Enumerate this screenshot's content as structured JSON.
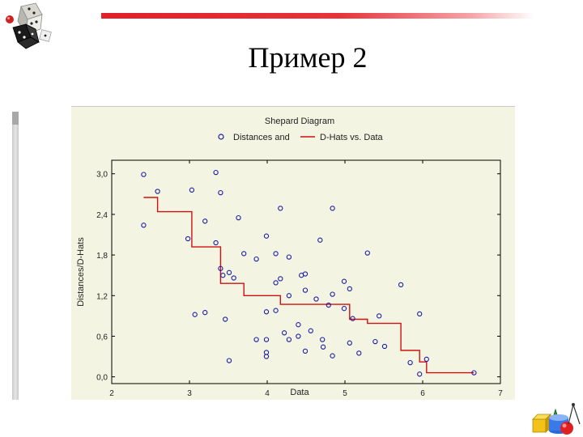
{
  "slide": {
    "title": "Пример 2"
  },
  "colors": {
    "accent_bar": "#e0202a",
    "plot_background": "#f4f4e2",
    "points": "#1a1aa8",
    "step_line": "#d01010"
  },
  "chart_data": {
    "type": "scatter",
    "title": "Shepard Diagram",
    "xlabel": "Data",
    "ylabel": "Distances/D-Hats",
    "xlim": [
      2,
      7
    ],
    "ylim": [
      -0.1,
      3.2
    ],
    "x_ticks": [
      "2",
      "3",
      "4",
      "5",
      "6",
      "7"
    ],
    "y_ticks": [
      "0,0",
      "0,6",
      "1,2",
      "1,8",
      "2,4",
      "3,0"
    ],
    "grid": false,
    "legend_position": "top",
    "series": [
      {
        "name": "Distances and",
        "style": "points",
        "points": [
          [
            2.41,
            2.99
          ],
          [
            2.41,
            2.24
          ],
          [
            2.59,
            2.74
          ],
          [
            2.98,
            2.04
          ],
          [
            3.03,
            2.76
          ],
          [
            3.07,
            0.92
          ],
          [
            3.2,
            0.95
          ],
          [
            3.2,
            2.3
          ],
          [
            3.34,
            1.98
          ],
          [
            3.34,
            3.02
          ],
          [
            3.4,
            2.72
          ],
          [
            3.4,
            1.6
          ],
          [
            3.43,
            1.5
          ],
          [
            3.46,
            0.85
          ],
          [
            3.51,
            0.24
          ],
          [
            3.51,
            1.54
          ],
          [
            3.57,
            1.46
          ],
          [
            3.63,
            2.35
          ],
          [
            3.7,
            1.82
          ],
          [
            3.86,
            1.74
          ],
          [
            3.86,
            0.55
          ],
          [
            3.99,
            0.55
          ],
          [
            3.99,
            0.96
          ],
          [
            3.99,
            0.36
          ],
          [
            3.99,
            0.3
          ],
          [
            3.99,
            2.08
          ],
          [
            4.11,
            1.82
          ],
          [
            4.11,
            1.39
          ],
          [
            4.11,
            0.98
          ],
          [
            4.17,
            1.45
          ],
          [
            4.17,
            2.49
          ],
          [
            4.22,
            0.65
          ],
          [
            4.28,
            1.77
          ],
          [
            4.28,
            0.55
          ],
          [
            4.28,
            1.2
          ],
          [
            4.4,
            0.6
          ],
          [
            4.4,
            0.77
          ],
          [
            4.44,
            1.5
          ],
          [
            4.49,
            1.52
          ],
          [
            4.49,
            1.28
          ],
          [
            4.49,
            0.38
          ],
          [
            4.56,
            0.68
          ],
          [
            4.63,
            1.15
          ],
          [
            4.68,
            2.02
          ],
          [
            4.71,
            0.55
          ],
          [
            4.72,
            0.44
          ],
          [
            4.79,
            1.06
          ],
          [
            4.84,
            1.22
          ],
          [
            4.84,
            2.49
          ],
          [
            4.84,
            0.31
          ],
          [
            4.99,
            1.41
          ],
          [
            4.99,
            1.01
          ],
          [
            5.06,
            1.3
          ],
          [
            5.06,
            0.5
          ],
          [
            5.1,
            0.86
          ],
          [
            5.18,
            0.35
          ],
          [
            5.29,
            1.83
          ],
          [
            5.39,
            0.52
          ],
          [
            5.44,
            0.9
          ],
          [
            5.51,
            0.45
          ],
          [
            5.72,
            1.36
          ],
          [
            5.84,
            0.21
          ],
          [
            5.96,
            0.93
          ],
          [
            5.96,
            0.04
          ],
          [
            6.05,
            0.26
          ],
          [
            6.66,
            0.06
          ]
        ]
      },
      {
        "name": "D-Hats vs. Data",
        "style": "step",
        "points": [
          [
            2.41,
            2.65
          ],
          [
            2.59,
            2.65
          ],
          [
            2.59,
            2.44
          ],
          [
            3.03,
            2.44
          ],
          [
            3.03,
            1.92
          ],
          [
            3.4,
            1.92
          ],
          [
            3.4,
            1.38
          ],
          [
            3.7,
            1.38
          ],
          [
            3.7,
            1.2
          ],
          [
            4.17,
            1.2
          ],
          [
            4.17,
            1.07
          ],
          [
            5.06,
            1.07
          ],
          [
            5.06,
            0.85
          ],
          [
            5.29,
            0.85
          ],
          [
            5.29,
            0.79
          ],
          [
            5.72,
            0.79
          ],
          [
            5.72,
            0.39
          ],
          [
            5.96,
            0.39
          ],
          [
            5.96,
            0.22
          ],
          [
            6.05,
            0.22
          ],
          [
            6.05,
            0.06
          ],
          [
            6.66,
            0.06
          ]
        ]
      }
    ]
  }
}
